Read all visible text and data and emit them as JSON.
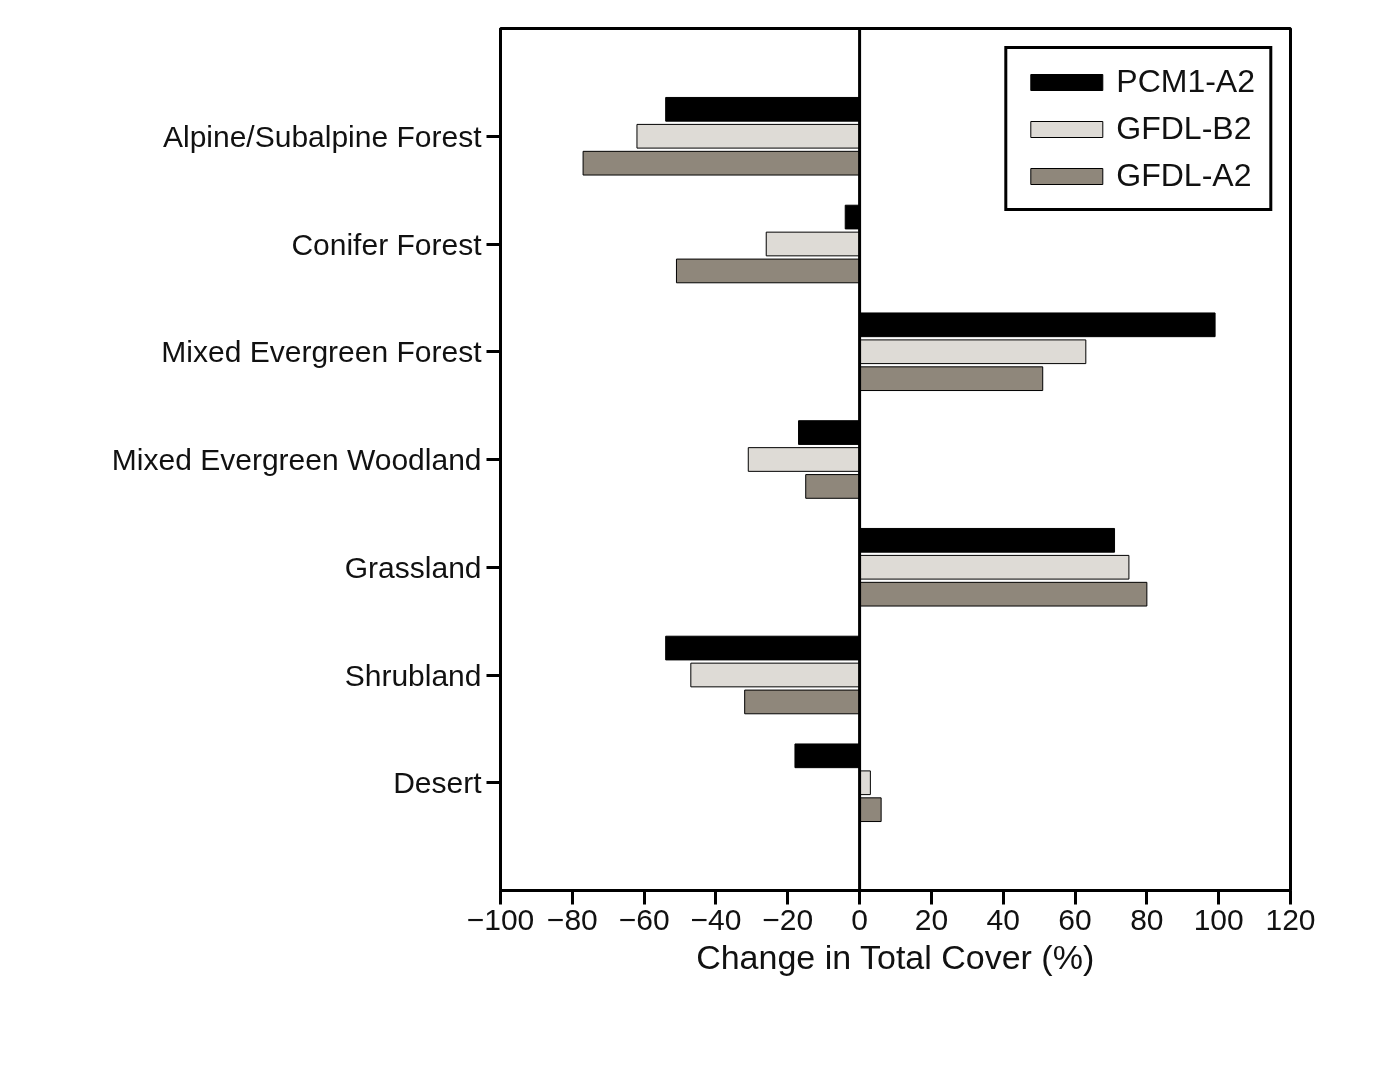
{
  "chart_data": {
    "type": "bar",
    "orientation": "horizontal",
    "xlabel": "Change in Total Cover (%)",
    "categories": [
      "Alpine/Subalpine Forest",
      "Conifer Forest",
      "Mixed Evergreen Forest",
      "Mixed Evergreen Woodland",
      "Grassland",
      "Shrubland",
      "Desert"
    ],
    "series": [
      {
        "name": "PCM1-A2",
        "color": "#000000",
        "values": [
          -54,
          -4,
          99,
          -17,
          71,
          -54,
          -18
        ]
      },
      {
        "name": "GFDL-B2",
        "color": "#dedbd6",
        "values": [
          -62,
          -26,
          63,
          -31,
          75,
          -47,
          3
        ]
      },
      {
        "name": "GFDL-A2",
        "color": "#8f877b",
        "values": [
          -77,
          -51,
          51,
          -15,
          80,
          -32,
          6
        ]
      }
    ],
    "xlim": [
      -100,
      120
    ],
    "xticks": [
      -100,
      -80,
      -60,
      -40,
      -20,
      0,
      20,
      40,
      60,
      80,
      100,
      120
    ],
    "ref_lines": [
      {
        "axis": "x",
        "value": 0,
        "color": "#000000"
      }
    ],
    "grid": false,
    "legend": "top right"
  }
}
